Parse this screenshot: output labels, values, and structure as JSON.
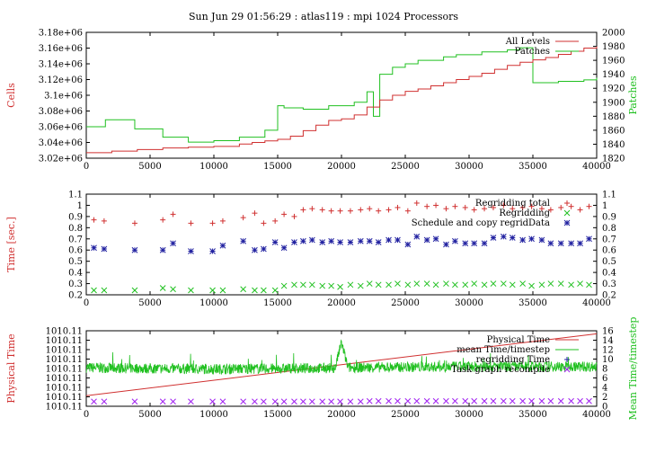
{
  "figure": {
    "title": "Sun Jun 29 01:56:29 : atlas119 : mpi 1024 Processors",
    "colors": {
      "red": "#d03030",
      "green": "#20c020",
      "blue": "#2020a0",
      "magenta": "#a020f0",
      "axis": "#000000"
    }
  },
  "chart_data": [
    {
      "type": "line",
      "xlim": [
        0,
        40000
      ],
      "xticks": [
        "0",
        "5000",
        "10000",
        "15000",
        "20000",
        "25000",
        "30000",
        "35000",
        "40000"
      ],
      "ylabel": "Cells",
      "ylabel_right": "Patches",
      "ylim": [
        3020000,
        3180000
      ],
      "yticks": [
        "3.02e+06",
        "3.04e+06",
        "3.06e+06",
        "3.08e+06",
        "3.1e+06",
        "3.12e+06",
        "3.14e+06",
        "3.16e+06",
        "3.18e+06"
      ],
      "y2lim": [
        1820,
        2000
      ],
      "y2ticks": [
        "1820",
        "1840",
        "1860",
        "1880",
        "1900",
        "1920",
        "1940",
        "1960",
        "1980",
        "2000"
      ],
      "legend": "top-right",
      "series": [
        {
          "name": "All Levels",
          "axis": "left",
          "style": "step",
          "color": "red",
          "x": [
            0,
            2000,
            4000,
            6000,
            8000,
            10000,
            12000,
            13000,
            14000,
            15000,
            16000,
            17000,
            18000,
            19000,
            20000,
            21000,
            22000,
            23000,
            24000,
            25000,
            26000,
            27000,
            28000,
            29000,
            30000,
            31000,
            32000,
            33000,
            34000,
            35000,
            36000,
            37000,
            38000,
            39000,
            40000
          ],
          "y": [
            3027000,
            3029000,
            3031000,
            3033000,
            3034000,
            3035000,
            3038000,
            3040000,
            3042000,
            3044000,
            3048000,
            3055000,
            3062000,
            3068000,
            3070000,
            3075000,
            3085000,
            3094000,
            3100000,
            3105000,
            3108000,
            3112000,
            3116000,
            3120000,
            3124000,
            3128000,
            3133000,
            3138000,
            3142000,
            3145000,
            3148000,
            3152000,
            3156000,
            3160000,
            3162000
          ]
        },
        {
          "name": "Patches",
          "axis": "right",
          "style": "step",
          "color": "green",
          "x": [
            0,
            1500,
            3800,
            6000,
            8000,
            10000,
            12000,
            14000,
            15000,
            15500,
            17000,
            19000,
            21000,
            22000,
            22500,
            23000,
            24000,
            25000,
            26000,
            28000,
            29000,
            31000,
            33000,
            34000,
            35000,
            37000,
            39000,
            40000
          ],
          "y": [
            1865,
            1875,
            1862,
            1850,
            1843,
            1845,
            1850,
            1860,
            1895,
            1892,
            1890,
            1895,
            1900,
            1915,
            1880,
            1940,
            1950,
            1955,
            1960,
            1965,
            1968,
            1972,
            1975,
            1978,
            1928,
            1930,
            1932,
            1935
          ]
        }
      ]
    },
    {
      "type": "scatter",
      "xlim": [
        0,
        40000
      ],
      "xticks": [
        "0",
        "5000",
        "10000",
        "15000",
        "20000",
        "25000",
        "30000",
        "35000",
        "40000"
      ],
      "ylabel": "Time [sec.]",
      "ylim": [
        0.2,
        1.1
      ],
      "yticks": [
        "0.2",
        "0.3",
        "0.4",
        "0.5",
        "0.6",
        "0.7",
        "0.8",
        "0.9",
        "1",
        "1.1"
      ],
      "y2ticks": [
        "0.2",
        "0.3",
        "0.4",
        "0.5",
        "0.6",
        "0.7",
        "0.8",
        "0.9",
        "1",
        "1.1"
      ],
      "legend": "top-right",
      "series": [
        {
          "name": "Regridding total",
          "marker": "+",
          "color": "red",
          "x": [
            600,
            1400,
            3800,
            6000,
            6800,
            8200,
            9900,
            10700,
            12300,
            13200,
            13900,
            14800,
            15500,
            16300,
            17000,
            17700,
            18500,
            19200,
            19900,
            20700,
            21500,
            22200,
            22900,
            23700,
            24400,
            25200,
            25900,
            26700,
            27400,
            28200,
            28900,
            29700,
            30400,
            31200,
            31900,
            32700,
            33400,
            34200,
            34900,
            35700,
            36400,
            37200,
            38000,
            38700,
            39400
          ],
          "y": [
            0.87,
            0.86,
            0.84,
            0.87,
            0.92,
            0.84,
            0.84,
            0.86,
            0.89,
            0.93,
            0.84,
            0.86,
            0.92,
            0.9,
            0.96,
            0.97,
            0.96,
            0.95,
            0.95,
            0.95,
            0.96,
            0.97,
            0.95,
            0.96,
            0.98,
            0.95,
            1.02,
            0.99,
            1.0,
            0.97,
            0.99,
            0.98,
            0.96,
            0.97,
            0.98,
            1.0,
            0.97,
            0.98,
            0.99,
            0.97,
            0.96,
            0.98,
            0.99,
            0.96,
            0.99
          ]
        },
        {
          "name": "Regridding",
          "marker": "x",
          "color": "green",
          "x": [
            600,
            1400,
            3800,
            6000,
            6800,
            8200,
            9900,
            10700,
            12300,
            13200,
            13900,
            14800,
            15500,
            16300,
            17000,
            17700,
            18500,
            19200,
            19900,
            20700,
            21500,
            22200,
            22900,
            23700,
            24400,
            25200,
            25900,
            26700,
            27400,
            28200,
            28900,
            29700,
            30400,
            31200,
            31900,
            32700,
            33400,
            34200,
            34900,
            35700,
            36400,
            37200,
            38000,
            38700,
            39400
          ],
          "y": [
            0.24,
            0.24,
            0.24,
            0.26,
            0.25,
            0.24,
            0.24,
            0.24,
            0.25,
            0.24,
            0.24,
            0.24,
            0.28,
            0.29,
            0.29,
            0.29,
            0.28,
            0.28,
            0.27,
            0.29,
            0.28,
            0.3,
            0.29,
            0.29,
            0.3,
            0.29,
            0.3,
            0.3,
            0.29,
            0.3,
            0.29,
            0.29,
            0.3,
            0.29,
            0.3,
            0.3,
            0.29,
            0.3,
            0.28,
            0.29,
            0.3,
            0.3,
            0.29,
            0.3,
            0.29
          ]
        },
        {
          "name": "Schedule and copy regridData",
          "marker": "*",
          "color": "blue",
          "x": [
            600,
            1400,
            3800,
            6000,
            6800,
            8200,
            9900,
            10700,
            12300,
            13200,
            13900,
            14800,
            15500,
            16300,
            17000,
            17700,
            18500,
            19200,
            19900,
            20700,
            21500,
            22200,
            22900,
            23700,
            24400,
            25200,
            25900,
            26700,
            27400,
            28200,
            28900,
            29700,
            30400,
            31200,
            31900,
            32700,
            33400,
            34200,
            34900,
            35700,
            36400,
            37200,
            38000,
            38700,
            39400
          ],
          "y": [
            0.62,
            0.61,
            0.6,
            0.6,
            0.66,
            0.59,
            0.59,
            0.64,
            0.68,
            0.6,
            0.61,
            0.67,
            0.62,
            0.67,
            0.68,
            0.69,
            0.67,
            0.68,
            0.67,
            0.67,
            0.68,
            0.68,
            0.67,
            0.69,
            0.69,
            0.65,
            0.72,
            0.69,
            0.7,
            0.65,
            0.68,
            0.66,
            0.66,
            0.66,
            0.71,
            0.72,
            0.71,
            0.69,
            0.7,
            0.69,
            0.66,
            0.66,
            0.66,
            0.66,
            0.7
          ]
        }
      ]
    },
    {
      "type": "line",
      "xlim": [
        0,
        40000
      ],
      "xticks": [
        "0",
        "5000",
        "10000",
        "15000",
        "20000",
        "25000",
        "30000",
        "35000",
        "40000"
      ],
      "ylabel": "Physical Time",
      "ylabel_right": "Mean Time/timestep",
      "yticks": [
        "1010.11",
        "1010.11",
        "1010.11",
        "1010.11",
        "1010.11",
        "1010.11",
        "1010.11",
        "1010.11",
        "1010.11"
      ],
      "y2lim": [
        0,
        16
      ],
      "y2ticks": [
        "0",
        "2",
        "4",
        "6",
        "8",
        "10",
        "12",
        "14",
        "16"
      ],
      "legend": "top-right",
      "series": [
        {
          "name": "Physical Time",
          "axis": "left",
          "style": "line",
          "color": "red",
          "x": [
            0,
            40000
          ],
          "y_fraction_of_axis": [
            0.14,
            0.96
          ]
        },
        {
          "name": "mean Time/timestep",
          "axis": "right",
          "style": "noisy-line",
          "color": "green",
          "x": [
            0,
            5000,
            10000,
            15000,
            19500,
            20000,
            20500,
            25000,
            30000,
            35000,
            40000
          ],
          "y": [
            8.2,
            8.0,
            7.9,
            8.0,
            8.1,
            13.5,
            8.2,
            8.3,
            8.4,
            8.4,
            8.4
          ]
        },
        {
          "name": "regridding Time",
          "axis": "right",
          "marker": "+",
          "color": "blue",
          "x": [],
          "y": []
        },
        {
          "name": "Task graph recompile",
          "axis": "right",
          "marker": "x",
          "color": "magenta",
          "x": [
            600,
            1400,
            3800,
            6000,
            6800,
            8200,
            9900,
            10700,
            12300,
            13200,
            13900,
            14800,
            15500,
            16300,
            17000,
            17700,
            18500,
            19200,
            19900,
            20700,
            21500,
            22200,
            22900,
            23700,
            24400,
            25200,
            25900,
            26700,
            27400,
            28200,
            28900,
            29700,
            30400,
            31200,
            31900,
            32700,
            33400,
            34200,
            34900,
            35700,
            36400,
            37200,
            38000,
            38700,
            39400
          ],
          "y": [
            1.0,
            1.0,
            1.0,
            1.0,
            1.0,
            1.0,
            1.0,
            1.0,
            1.0,
            1.0,
            1.0,
            1.0,
            1.0,
            1.0,
            1.0,
            1.0,
            1.0,
            1.0,
            1.0,
            1.0,
            1.0,
            1.1,
            1.1,
            1.1,
            1.1,
            1.1,
            1.1,
            1.1,
            1.1,
            1.1,
            1.1,
            1.1,
            1.1,
            1.1,
            1.1,
            1.1,
            1.1,
            1.1,
            1.1,
            1.1,
            1.1,
            1.1,
            1.1,
            1.1,
            1.1
          ]
        }
      ]
    }
  ]
}
